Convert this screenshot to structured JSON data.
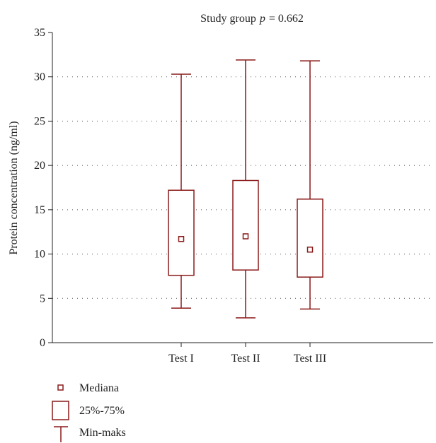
{
  "chart_data": {
    "type": "boxplot",
    "title_prefix": "Study group",
    "title_p_symbol": "p",
    "title_p_value": "= 0.662",
    "xlabel": "",
    "ylabel": "Protein concentration (ng/ml)",
    "ylim": [
      0,
      35
    ],
    "yticks": [
      0,
      5,
      10,
      15,
      20,
      25,
      30,
      35
    ],
    "grid": "dotted-horizontal",
    "color": "#8b1a1a",
    "categories": [
      "Test I",
      "Test II",
      "Test III"
    ],
    "boxes": [
      {
        "category": "Test I",
        "min": 3.9,
        "q1": 7.6,
        "median": 11.7,
        "q3": 17.2,
        "max": 30.3
      },
      {
        "category": "Test II",
        "min": 2.8,
        "q1": 8.2,
        "median": 12.0,
        "q3": 18.3,
        "max": 31.9
      },
      {
        "category": "Test III",
        "min": 3.8,
        "q1": 7.4,
        "median": 10.5,
        "q3": 16.2,
        "max": 31.8
      }
    ],
    "legend": {
      "placement": "bottom-left",
      "median_label": "Mediana",
      "box_label": "25%-75%",
      "whisker_label": "Min-maks"
    }
  }
}
